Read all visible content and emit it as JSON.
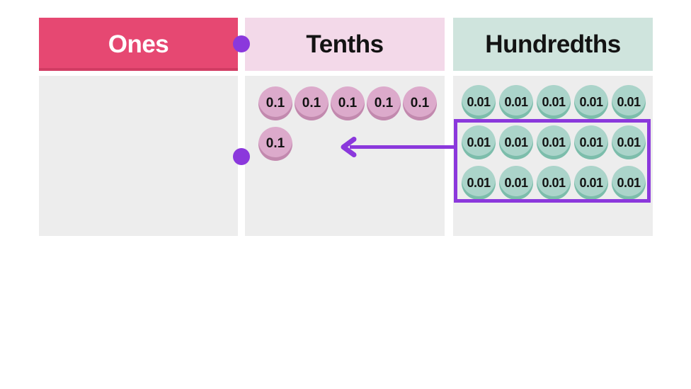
{
  "place_value_chart": {
    "body_bg": "#ededed",
    "text_color": "#131313",
    "columns": [
      {
        "id": "ones",
        "label": "Ones",
        "header_bg": "#e64872",
        "header_text": "#ffffff",
        "header_edge": "#d13c63",
        "rows": [],
        "counter_total": 0
      },
      {
        "id": "tenths",
        "label": "Tenths",
        "header_bg": "#f3d9e9",
        "header_text": "#131313",
        "counter_value": "0.1",
        "counter_fill": "#dcaacb",
        "counter_edge": "#c289ae",
        "rows": [
          5,
          1
        ],
        "counter_total": 6
      },
      {
        "id": "hundredths",
        "label": "Hundredths",
        "header_bg": "#cfe4dd",
        "header_text": "#131313",
        "counter_value": "0.01",
        "counter_fill": "#abd4ca",
        "counter_edge": "#7cbdab",
        "rows": [
          5,
          5,
          5
        ],
        "counter_total": 15
      }
    ],
    "annotation": {
      "color": "#8b38dc",
      "highlight_box": {
        "column": "hundredths",
        "rows_enclosed": [
          2,
          3
        ],
        "counters_enclosed": 10
      },
      "arrow": {
        "direction": "left",
        "from": "highlight-box",
        "to": "tenths-column"
      },
      "marker_dots": [
        {
          "location": "between-ones-and-tenths-headers"
        },
        {
          "location": "between-ones-and-tenths-bodies"
        }
      ]
    }
  }
}
